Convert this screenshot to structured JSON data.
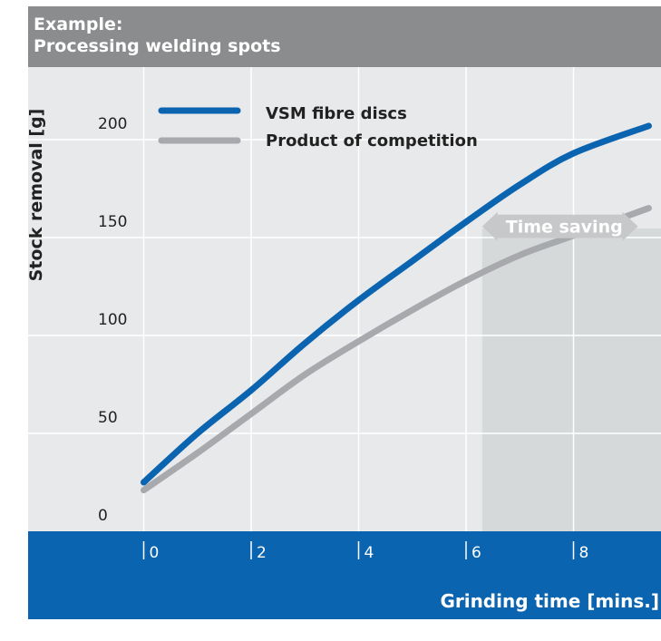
{
  "header": {
    "line1": "Example:",
    "line2": "Processing welding spots"
  },
  "colors": {
    "header_bg": "#8a8c8e",
    "plot_bg": "#e7e9eb",
    "grid": "#ffffff",
    "axis_band": "#0a64b0",
    "series_vsm": "#0a64b0",
    "series_competition": "#a7a9ac",
    "shade": "#d2d4d6",
    "arrow": "#c6c8ca"
  },
  "chart_data": {
    "type": "line",
    "xlabel": "Grinding time [mins.]",
    "ylabel": "Stock removal [g]",
    "x_ticks": [
      0,
      2,
      4,
      6,
      8
    ],
    "x_tick_labels": [
      "0",
      "2",
      "4",
      "6",
      "8"
    ],
    "y_ticks": [
      0,
      50,
      100,
      150,
      200
    ],
    "y_tick_labels": [
      "0",
      "50",
      "100",
      "150",
      "200"
    ],
    "xlim": [
      0,
      9.5
    ],
    "ylim": [
      0,
      225
    ],
    "grid": true,
    "legend_position": "top-left",
    "series": [
      {
        "name": "VSM fibre discs",
        "x": [
          0,
          1,
          2,
          3,
          4,
          5,
          6,
          7,
          8,
          9.4
        ],
        "values": [
          25,
          50,
          72,
          96,
          118,
          138,
          158,
          177,
          193,
          207
        ]
      },
      {
        "name": "Product of competition",
        "x": [
          0,
          1,
          2,
          3,
          4,
          5,
          6,
          7,
          8,
          9.4
        ],
        "values": [
          21,
          40,
          60,
          80,
          97,
          113,
          128,
          141,
          151,
          165
        ]
      }
    ],
    "annotations": [
      {
        "text": "Time saving",
        "x_from": 6.3,
        "x_to": 9.2,
        "y": 158
      }
    ],
    "shaded_region": {
      "x_from": 6.3,
      "x_to": 9.5
    }
  }
}
